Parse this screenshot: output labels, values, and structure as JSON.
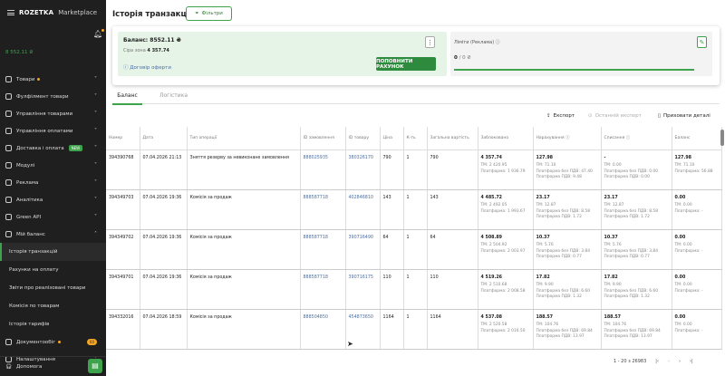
{
  "sidebar": {
    "logo_brand": "ROZETKA",
    "logo_suffix": "Marketplace",
    "balance": "8 552.11 ₴",
    "items": [
      {
        "label": "Товари",
        "dot": true
      },
      {
        "label": "Фулфілмент товари"
      },
      {
        "label": "Управління товарами"
      },
      {
        "label": "Управління оплатами"
      },
      {
        "label": "Доставка і оплата",
        "badge": "NEW"
      },
      {
        "label": "Модулі"
      },
      {
        "label": "Реклама"
      },
      {
        "label": "Аналітика"
      },
      {
        "label": "Green API"
      },
      {
        "label": "Мій баланс",
        "expanded": true
      }
    ],
    "subitems": [
      {
        "label": "Історія транзакцій",
        "active": true
      },
      {
        "label": "Рахунки на оплату"
      },
      {
        "label": "Звіти про реалізовані товари"
      },
      {
        "label": "Комісія по товарам"
      },
      {
        "label": "Історія тарифів"
      }
    ],
    "docs": {
      "label": "Документообіг",
      "count": "60"
    },
    "settings": "Налаштування",
    "help": "Допомога"
  },
  "header": {
    "title": "Історія транзакцій",
    "filter": "Фільтри"
  },
  "balance_card": {
    "balance_label": "Баланс:",
    "balance": "8552.11 ₴",
    "grey_label": "Сіра зона",
    "grey": "4 357.74",
    "offer": "Договір оферти",
    "topup": "ПОПОВНИТИ РАХУНОК"
  },
  "limits_card": {
    "title": "Ліміти (Реклама)",
    "used": "0",
    "total": "/ 0 ₴",
    "progress": 0
  },
  "tabs": [
    "Баланс",
    "Логістика"
  ],
  "tools": {
    "export": "Експорт",
    "last_export": "Останній експорт",
    "hide": "Приховати деталі"
  },
  "table": {
    "headers": [
      "Номер",
      "Дата",
      "Тип операції",
      "ID замовлення",
      "ID товару",
      "Ціна",
      "К-ть",
      "Загальна вартість",
      "Заблоковано",
      "Нарахування",
      "Списання",
      "Баланс"
    ],
    "rows": [
      {
        "num": "394390768",
        "date": "07.04.2026 21:13",
        "type": "Зняття резерву за невиконане замовлення",
        "order": "888025935",
        "product": "380326170",
        "price": "790",
        "qty": "1",
        "total": "790",
        "blocked": [
          "4 357.74",
          "ТМ: 2 420.95",
          "Платформа: 1 936.79"
        ],
        "accrual": [
          "127.98",
          "ТМ: 71.10",
          "Платформа без ПДВ: 47.40",
          "Платформа ПДВ: 9.48"
        ],
        "debit": [
          "-",
          "ТМ: 0.00",
          "Платформа без ПДВ: 0.00",
          "Платформа ПДВ: 0.00"
        ],
        "balance": [
          "127.98",
          "ТМ: 71.10",
          "Платформа: 56.88"
        ]
      },
      {
        "num": "394349703",
        "date": "07.04.2026 19:36",
        "type": "Комісія за продаж",
        "order": "888587718",
        "product": "402846810",
        "price": "143",
        "qty": "1",
        "total": "143",
        "blocked": [
          "4 485.72",
          "ТМ: 2 492.05",
          "Платформа: 1 993.67"
        ],
        "accrual": [
          "23.17",
          "ТМ: 12.87",
          "Платформа без ПДВ: 8.58",
          "Платформа ПДВ: 1.72"
        ],
        "debit": [
          "23.17",
          "ТМ: 12.87",
          "Платформа без ПДВ: 8.58",
          "Платформа ПДВ: 1.72"
        ],
        "balance": [
          "0.00",
          "ТМ: 0.00",
          "Платформа: -"
        ]
      },
      {
        "num": "394349702",
        "date": "07.04.2026 19:36",
        "type": "Комісія за продаж",
        "order": "888587718",
        "product": "390716490",
        "price": "64",
        "qty": "1",
        "total": "64",
        "blocked": [
          "4 508.89",
          "ТМ: 2 504.92",
          "Платформа: 2 003.97"
        ],
        "accrual": [
          "10.37",
          "ТМ: 5.76",
          "Платформа без ПДВ: 3.84",
          "Платформа ПДВ: 0.77"
        ],
        "debit": [
          "10.37",
          "ТМ: 5.76",
          "Платформа без ПДВ: 3.84",
          "Платформа ПДВ: 0.77"
        ],
        "balance": [
          "0.00",
          "ТМ: 0.00",
          "Платформа: -"
        ]
      },
      {
        "num": "394349701",
        "date": "07.04.2026 19:36",
        "type": "Комісія за продаж",
        "order": "888587718",
        "product": "390716175",
        "price": "110",
        "qty": "1",
        "total": "110",
        "blocked": [
          "4 519.26",
          "ТМ: 2 510.68",
          "Платформа: 2 008.58"
        ],
        "accrual": [
          "17.82",
          "ТМ: 9.90",
          "Платформа без ПДВ: 6.60",
          "Платформа ПДВ: 1.32"
        ],
        "debit": [
          "17.82",
          "ТМ: 9.90",
          "Платформа без ПДВ: 6.60",
          "Платформа ПДВ: 1.32"
        ],
        "balance": [
          "0.00",
          "ТМ: 0.00",
          "Платформа: -"
        ]
      },
      {
        "num": "394332016",
        "date": "07.04.2026 18:59",
        "type": "Комісія за продаж",
        "order": "888504850",
        "product": "454873650",
        "price": "1164",
        "qty": "1",
        "total": "1164",
        "blocked": [
          "4 537.08",
          "ТМ: 2 520.58",
          "Платформа: 2 016.50"
        ],
        "accrual": [
          "188.57",
          "ТМ: 104.76",
          "Платформа без ПДВ: 69.84",
          "Платформа ПДВ: 13.97"
        ],
        "debit": [
          "188.57",
          "ТМ: 104.76",
          "Платформа без ПДВ: 69.84",
          "Платформа ПДВ: 13.97"
        ],
        "balance": [
          "0.00",
          "ТМ: 0.00",
          "Платформа: -"
        ]
      }
    ]
  },
  "pagination": {
    "range": "1 - 20 з 26983"
  },
  "colors": {
    "accent": "#3fa34d",
    "sidebar": "#1f1f1f",
    "link": "#4a6fa5"
  }
}
